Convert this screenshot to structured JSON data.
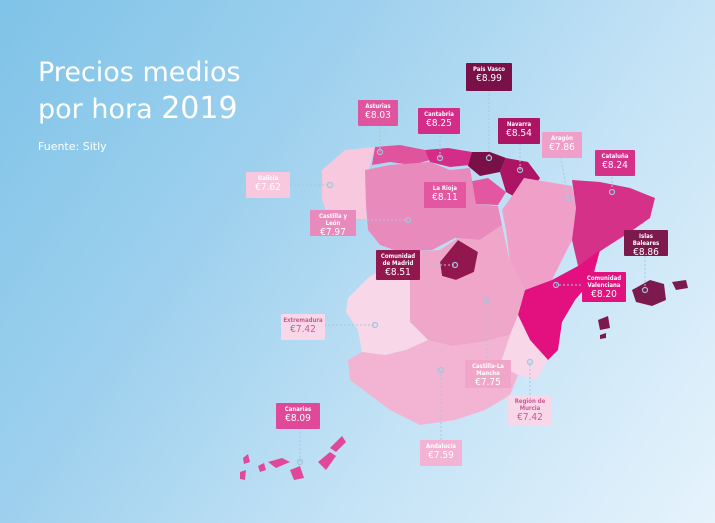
{
  "title_line1": "Precios medios",
  "title_line2": "por hora",
  "title_year": "2019",
  "source": "Fuente: Sitly",
  "regions": [
    {
      "key": "pais_vasco",
      "name": "País Vasco",
      "price": "€8.99",
      "color": "#7a1048"
    },
    {
      "key": "asturias",
      "name": "Asturias",
      "price": "€8.03",
      "color": "#e0549e"
    },
    {
      "key": "cantabria",
      "name": "Cantabria",
      "price": "€8.25",
      "color": "#d42d87"
    },
    {
      "key": "navarra",
      "name": "Navarra",
      "price": "€8.54",
      "color": "#ad1463"
    },
    {
      "key": "aragon",
      "name": "Aragón",
      "price": "€7.86",
      "color": "#f0a0c8"
    },
    {
      "key": "cataluna",
      "name": "Cataluña",
      "price": "€8.24",
      "color": "#d63189"
    },
    {
      "key": "galicia",
      "name": "Galicia",
      "price": "€7.62",
      "color": "#f7c8de"
    },
    {
      "key": "la_rioja",
      "name": "La Rioja",
      "price": "€8.11",
      "color": "#e2579f"
    },
    {
      "key": "castilla_leon",
      "name": "Castilla y León",
      "price": "€7.97",
      "color": "#e88bbc"
    },
    {
      "key": "islas_baleares",
      "name": "Islas Baleares",
      "price": "€8.86",
      "color": "#7c1a4e"
    },
    {
      "key": "madrid",
      "name": "Comunidad de Madrid",
      "price": "€8.51",
      "color": "#93174f"
    },
    {
      "key": "valenciana",
      "name": "Comunidad Valenciana",
      "price": "€8.20",
      "color": "#e2117f"
    },
    {
      "key": "extremadura",
      "name": "Extremadura",
      "price": "€7.42",
      "color": "#f8d8e8"
    },
    {
      "key": "castilla_la_mancha",
      "name": "Castilla-La Mancha",
      "price": "€7.75",
      "color": "#f0a6c9"
    },
    {
      "key": "murcia",
      "name": "Región de Murcia",
      "price": "€7.42",
      "color": "#f8d8e8"
    },
    {
      "key": "canarias",
      "name": "Canarias",
      "price": "€8.09",
      "color": "#e0489a"
    },
    {
      "key": "andalucia",
      "name": "Andalucía",
      "price": "€7.59",
      "color": "#f2b4d2"
    }
  ]
}
